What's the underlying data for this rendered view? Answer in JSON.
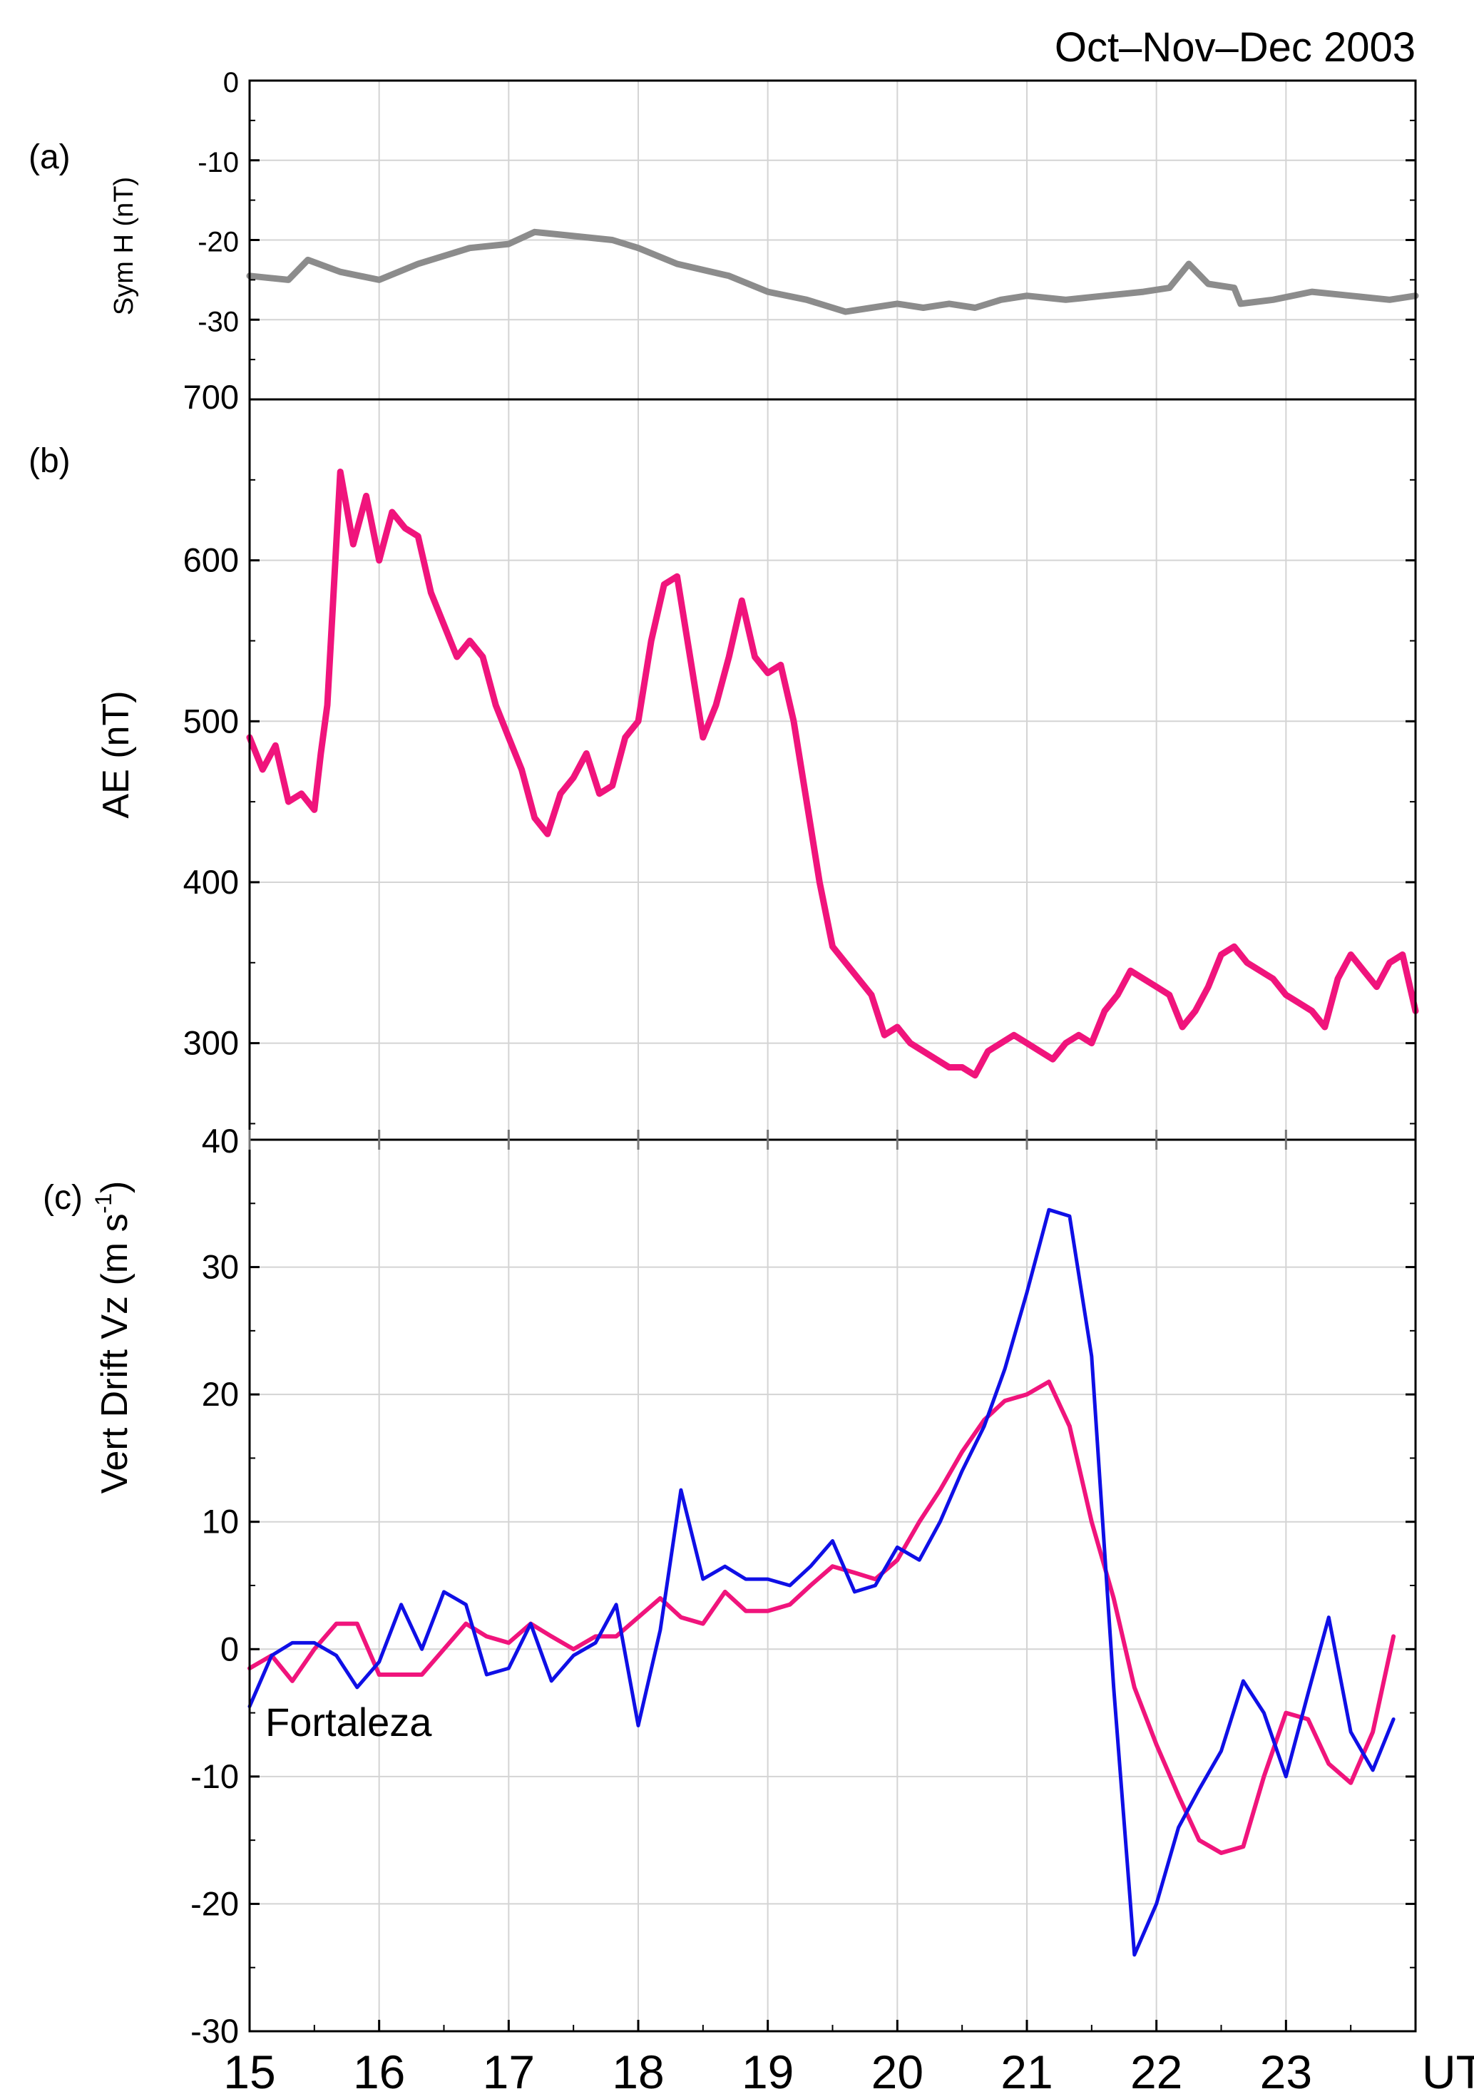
{
  "chart_data": [
    {
      "panel": "(a)",
      "type": "line",
      "title": "Oct–Nov–Dec 2003",
      "ylabel": "Sym H (nT)",
      "ylim": [
        -40,
        0
      ],
      "yticks": [
        0,
        -10,
        -20,
        -30
      ],
      "xlim": [
        15,
        24
      ],
      "grid": true,
      "series": [
        {
          "name": "Sym H",
          "color": "#8c8c8c",
          "x": [
            15.0,
            15.3,
            15.45,
            15.7,
            16.0,
            16.3,
            16.7,
            17.0,
            17.2,
            17.5,
            17.8,
            18.0,
            18.3,
            18.7,
            19.0,
            19.3,
            19.6,
            19.8,
            20.0,
            20.2,
            20.4,
            20.6,
            20.8,
            21.0,
            21.3,
            21.6,
            21.9,
            22.1,
            22.25,
            22.4,
            22.6,
            22.65,
            22.9,
            23.2,
            23.5,
            23.8,
            24.0
          ],
          "values": [
            -24.5,
            -25.0,
            -22.5,
            -24.0,
            -25.0,
            -23.0,
            -21.0,
            -20.5,
            -19.0,
            -19.5,
            -20.0,
            -21.0,
            -23.0,
            -24.5,
            -26.5,
            -27.5,
            -29.0,
            -28.5,
            -28.0,
            -28.5,
            -28.0,
            -28.5,
            -27.5,
            -27.0,
            -27.5,
            -27.0,
            -26.5,
            -26.0,
            -23.0,
            -25.5,
            -26.0,
            -28.0,
            -27.5,
            -26.5,
            -27.0,
            -27.5,
            -27.0
          ]
        }
      ]
    },
    {
      "panel": "(b)",
      "type": "line",
      "ylabel": "AE (nT)",
      "ylim": [
        240,
        700
      ],
      "yticks": [
        300,
        400,
        500,
        600
      ],
      "ytick_edge_labels": [
        "700",
        "40"
      ],
      "xlim": [
        15,
        24
      ],
      "grid": true,
      "series": [
        {
          "name": "AE",
          "color": "#f0147c",
          "x": [
            15.0,
            15.1,
            15.2,
            15.3,
            15.4,
            15.5,
            15.55,
            15.6,
            15.7,
            15.8,
            15.9,
            16.0,
            16.1,
            16.2,
            16.3,
            16.4,
            16.5,
            16.6,
            16.7,
            16.8,
            16.9,
            17.0,
            17.1,
            17.2,
            17.3,
            17.4,
            17.5,
            17.6,
            17.7,
            17.8,
            17.9,
            18.0,
            18.1,
            18.2,
            18.3,
            18.4,
            18.5,
            18.6,
            18.7,
            18.8,
            18.9,
            19.0,
            19.1,
            19.2,
            19.3,
            19.4,
            19.5,
            19.6,
            19.7,
            19.8,
            19.9,
            20.0,
            20.1,
            20.2,
            20.3,
            20.4,
            20.5,
            20.6,
            20.7,
            20.8,
            20.9,
            21.0,
            21.1,
            21.2,
            21.3,
            21.4,
            21.5,
            21.6,
            21.7,
            21.8,
            21.9,
            22.0,
            22.1,
            22.2,
            22.3,
            22.4,
            22.5,
            22.6,
            22.7,
            22.8,
            22.9,
            23.0,
            23.1,
            23.2,
            23.3,
            23.4,
            23.5,
            23.6,
            23.7,
            23.8,
            23.9,
            24.0
          ],
          "values": [
            490,
            470,
            485,
            450,
            455,
            445,
            480,
            510,
            655,
            610,
            640,
            600,
            630,
            620,
            615,
            580,
            560,
            540,
            550,
            540,
            510,
            490,
            470,
            440,
            430,
            455,
            465,
            480,
            455,
            460,
            490,
            500,
            550,
            585,
            590,
            540,
            490,
            510,
            540,
            575,
            540,
            530,
            535,
            500,
            450,
            400,
            360,
            350,
            340,
            330,
            305,
            310,
            300,
            295,
            290,
            285,
            285,
            280,
            295,
            300,
            305,
            300,
            295,
            290,
            300,
            305,
            300,
            320,
            330,
            345,
            340,
            335,
            330,
            310,
            320,
            335,
            355,
            360,
            350,
            345,
            340,
            330,
            325,
            320,
            310,
            340,
            355,
            345,
            335,
            350,
            355,
            320
          ]
        }
      ]
    },
    {
      "panel": "(c)",
      "type": "line",
      "ylabel": "Vert Drift Vz (m s-1)",
      "ylabel_parts": [
        "Vert Drift Vz (m s",
        "-1",
        ")"
      ],
      "ylim": [
        -30,
        40
      ],
      "yticks": [
        30,
        20,
        10,
        0,
        -10,
        -20,
        -30
      ],
      "xlim": [
        15,
        24
      ],
      "xticks": [
        15,
        16,
        17,
        18,
        19,
        20,
        21,
        22,
        23
      ],
      "xunit_label": "UT",
      "annotation": "Fortaleza",
      "grid": true,
      "series": [
        {
          "name": "Vz (thick)",
          "color": "#f0147c",
          "x": [
            15.0,
            15.17,
            15.33,
            15.5,
            15.67,
            15.83,
            16.0,
            16.17,
            16.33,
            16.5,
            16.67,
            16.83,
            17.0,
            17.17,
            17.33,
            17.5,
            17.67,
            17.83,
            18.0,
            18.17,
            18.33,
            18.5,
            18.67,
            18.83,
            19.0,
            19.17,
            19.33,
            19.5,
            19.67,
            19.83,
            20.0,
            20.17,
            20.33,
            20.5,
            20.67,
            20.83,
            21.0,
            21.17,
            21.33,
            21.5,
            21.67,
            21.83,
            22.0,
            22.17,
            22.33,
            22.5,
            22.67,
            22.83,
            23.0,
            23.17,
            23.33,
            23.5,
            23.67,
            23.83
          ],
          "values": [
            -1.5,
            -0.5,
            -2.5,
            0.0,
            2.0,
            2.0,
            -2.0,
            -2.0,
            -2.0,
            0.0,
            2.0,
            1.0,
            0.5,
            2.0,
            1.0,
            0.0,
            1.0,
            1.0,
            2.5,
            4.0,
            2.5,
            2.0,
            4.5,
            3.0,
            3.0,
            3.5,
            5.0,
            6.5,
            6.0,
            5.5,
            7.0,
            10.0,
            12.5,
            15.5,
            18.0,
            19.5,
            20.0,
            21.0,
            17.5,
            10.0,
            4.0,
            -3.0,
            -7.5,
            -11.5,
            -15.0,
            -16.0,
            -15.5,
            -10.0,
            -5.0,
            -5.5,
            -9.0,
            -10.5,
            -6.5,
            1.0
          ]
        },
        {
          "name": "Vz (thin)",
          "color": "#0f0fe6",
          "x": [
            15.0,
            15.17,
            15.33,
            15.5,
            15.67,
            15.83,
            16.0,
            16.17,
            16.33,
            16.5,
            16.67,
            16.83,
            17.0,
            17.17,
            17.33,
            17.5,
            17.67,
            17.83,
            18.0,
            18.17,
            18.33,
            18.5,
            18.67,
            18.83,
            19.0,
            19.17,
            19.33,
            19.5,
            19.67,
            19.83,
            20.0,
            20.17,
            20.33,
            20.5,
            20.67,
            20.83,
            21.0,
            21.17,
            21.33,
            21.5,
            21.67,
            21.83,
            22.0,
            22.17,
            22.33,
            22.5,
            22.67,
            22.83,
            23.0,
            23.17,
            23.33,
            23.5,
            23.67,
            23.83
          ],
          "values": [
            -4.5,
            -0.5,
            0.5,
            0.5,
            -0.5,
            -3.0,
            -1.0,
            3.5,
            0.0,
            4.5,
            3.5,
            -2.0,
            -1.5,
            2.0,
            -2.5,
            -0.5,
            0.5,
            3.5,
            -6.0,
            1.5,
            12.5,
            5.5,
            6.5,
            5.5,
            5.5,
            5.0,
            6.5,
            8.5,
            4.5,
            5.0,
            8.0,
            7.0,
            10.0,
            14.0,
            17.5,
            22.0,
            28.0,
            34.5,
            34.0,
            23.0,
            -3.0,
            -24.0,
            -20.0,
            -14.0,
            -11.0,
            -8.0,
            -2.5,
            -5.0,
            -10.0,
            -3.5,
            2.5,
            -6.5,
            -9.5,
            -5.5
          ]
        }
      ]
    }
  ]
}
